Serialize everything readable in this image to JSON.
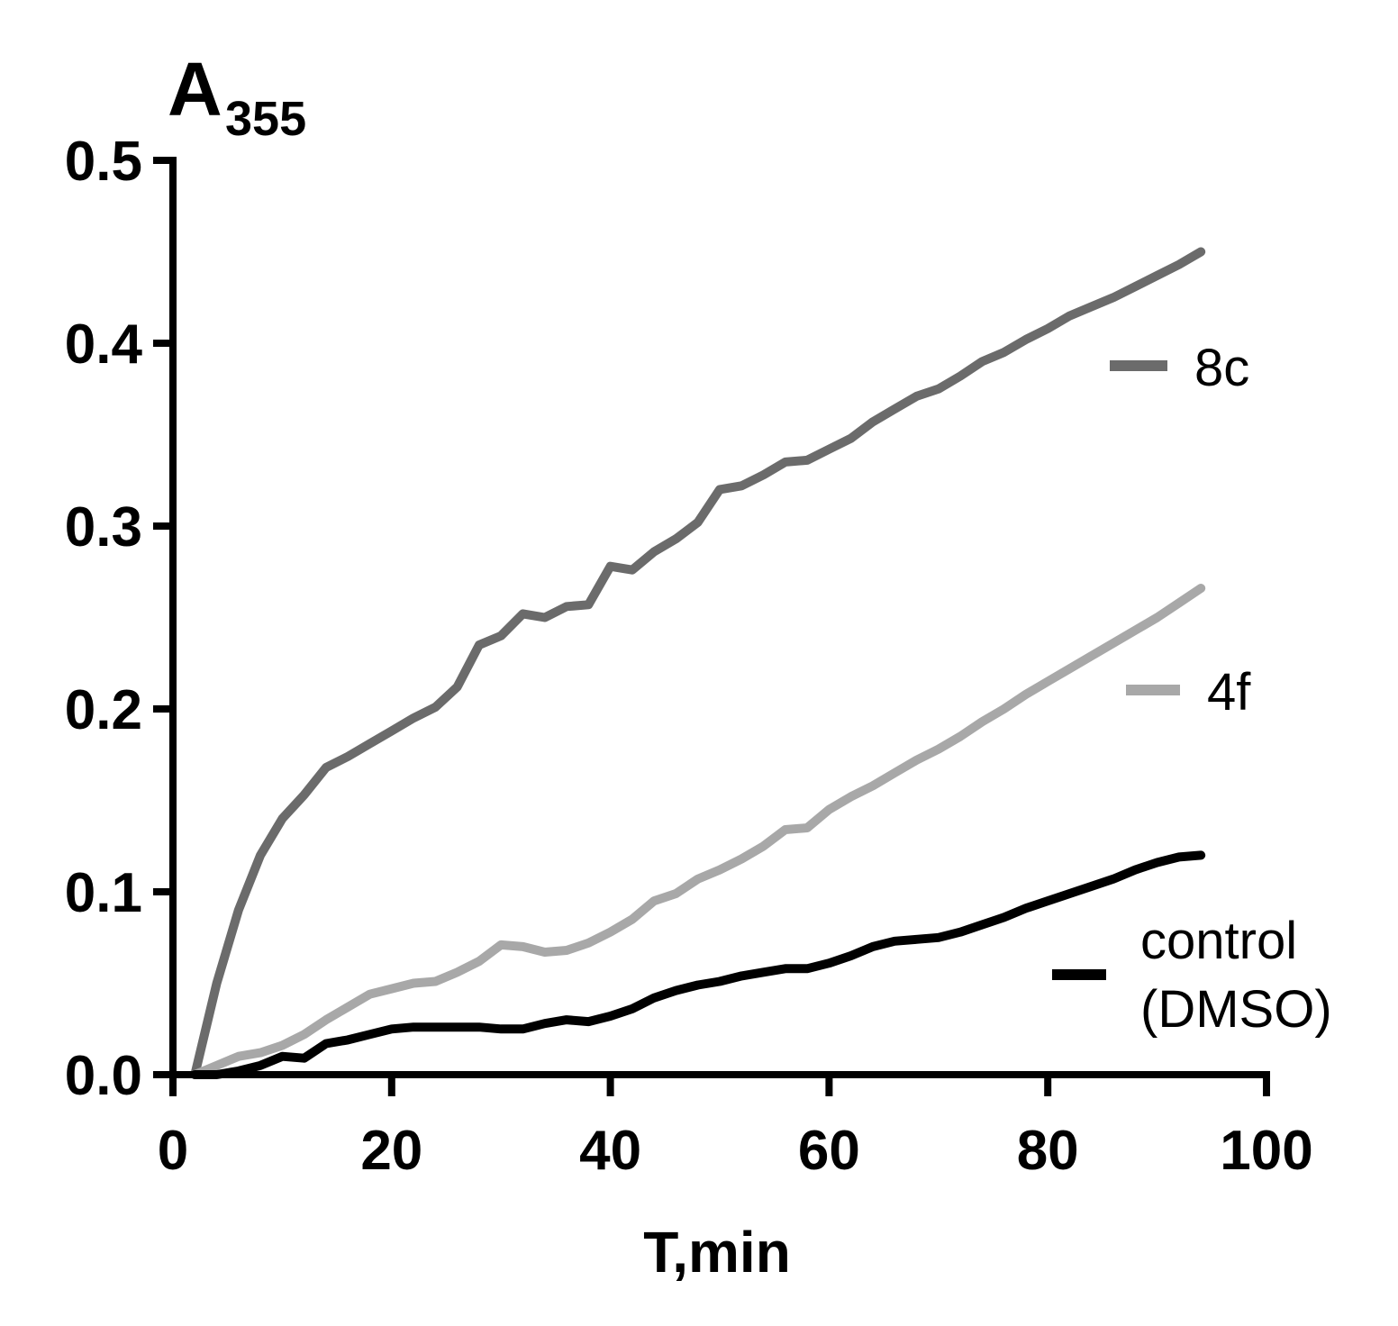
{
  "chart_data": {
    "type": "line",
    "title": "",
    "ylabel_main": "A",
    "ylabel_sub": "355",
    "xlabel": "T,min",
    "xlim": [
      0,
      100
    ],
    "ylim": [
      0.0,
      0.5
    ],
    "xticks": [
      0,
      20,
      40,
      60,
      80,
      100
    ],
    "xtick_labels": [
      "0",
      "20",
      "40",
      "60",
      "80",
      "100"
    ],
    "yticks": [
      0.0,
      0.1,
      0.2,
      0.3,
      0.4,
      0.5
    ],
    "ytick_labels": [
      "0.0",
      "0.1",
      "0.2",
      "0.3",
      "0.4",
      "0.5"
    ],
    "grid": false,
    "legend_position": "right",
    "series": [
      {
        "name": "8c",
        "color": "#6b6b6b",
        "x": [
          2,
          4,
          6,
          8,
          10,
          12,
          14,
          16,
          18,
          20,
          22,
          24,
          26,
          28,
          30,
          32,
          34,
          36,
          38,
          40,
          42,
          44,
          46,
          48,
          50,
          52,
          54,
          56,
          58,
          60,
          62,
          64,
          66,
          68,
          70,
          72,
          74,
          76,
          78,
          80,
          82,
          84,
          86,
          88,
          90,
          92,
          94
        ],
        "y": [
          0.0,
          0.05,
          0.09,
          0.12,
          0.14,
          0.153,
          0.168,
          0.174,
          0.181,
          0.188,
          0.195,
          0.201,
          0.212,
          0.235,
          0.24,
          0.252,
          0.25,
          0.256,
          0.257,
          0.278,
          0.276,
          0.286,
          0.293,
          0.302,
          0.32,
          0.322,
          0.328,
          0.335,
          0.336,
          0.342,
          0.348,
          0.357,
          0.364,
          0.371,
          0.375,
          0.382,
          0.39,
          0.395,
          0.402,
          0.408,
          0.415,
          0.42,
          0.425,
          0.431,
          0.437,
          0.443,
          0.45
        ]
      },
      {
        "name": "4f",
        "color": "#a8a8a8",
        "x": [
          2,
          4,
          6,
          8,
          10,
          12,
          14,
          16,
          18,
          20,
          22,
          24,
          26,
          28,
          30,
          32,
          34,
          36,
          38,
          40,
          42,
          44,
          46,
          48,
          50,
          52,
          54,
          56,
          58,
          60,
          62,
          64,
          66,
          68,
          70,
          72,
          74,
          76,
          78,
          80,
          82,
          84,
          86,
          88,
          90,
          92,
          94
        ],
        "y": [
          0.0,
          0.005,
          0.01,
          0.012,
          0.016,
          0.022,
          0.03,
          0.037,
          0.044,
          0.047,
          0.05,
          0.051,
          0.056,
          0.062,
          0.071,
          0.07,
          0.067,
          0.068,
          0.072,
          0.078,
          0.085,
          0.095,
          0.099,
          0.107,
          0.112,
          0.118,
          0.125,
          0.134,
          0.135,
          0.145,
          0.152,
          0.158,
          0.165,
          0.172,
          0.178,
          0.185,
          0.193,
          0.2,
          0.208,
          0.215,
          0.222,
          0.229,
          0.236,
          0.243,
          0.25,
          0.258,
          0.266
        ]
      },
      {
        "name": "control\n(DMSO)",
        "legend_lines": [
          "control",
          "(DMSO)"
        ],
        "color": "#000000",
        "x": [
          2,
          4,
          6,
          8,
          10,
          12,
          14,
          16,
          18,
          20,
          22,
          24,
          26,
          28,
          30,
          32,
          34,
          36,
          38,
          40,
          42,
          44,
          46,
          48,
          50,
          52,
          54,
          56,
          58,
          60,
          62,
          64,
          66,
          68,
          70,
          72,
          74,
          76,
          78,
          80,
          82,
          84,
          86,
          88,
          90,
          92,
          94
        ],
        "y": [
          0.0,
          0.0,
          0.002,
          0.005,
          0.01,
          0.009,
          0.017,
          0.019,
          0.022,
          0.025,
          0.026,
          0.026,
          0.026,
          0.026,
          0.025,
          0.025,
          0.028,
          0.03,
          0.029,
          0.032,
          0.036,
          0.042,
          0.046,
          0.049,
          0.051,
          0.054,
          0.056,
          0.058,
          0.058,
          0.061,
          0.065,
          0.07,
          0.073,
          0.074,
          0.075,
          0.078,
          0.082,
          0.086,
          0.091,
          0.095,
          0.099,
          0.103,
          0.107,
          0.112,
          0.116,
          0.119,
          0.12
        ]
      }
    ]
  }
}
